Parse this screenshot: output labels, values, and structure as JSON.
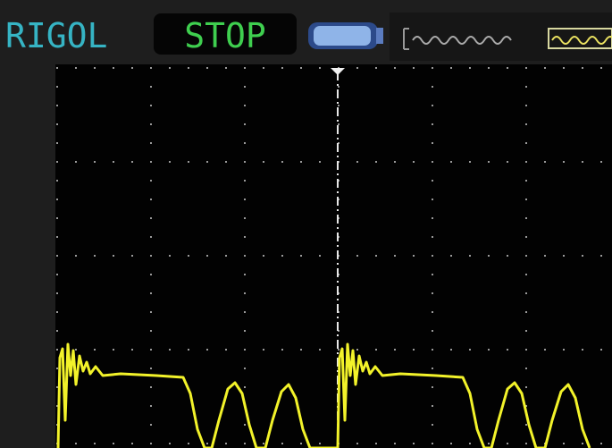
{
  "header": {
    "brand": "RIGOL",
    "status": "STOP"
  }
}
